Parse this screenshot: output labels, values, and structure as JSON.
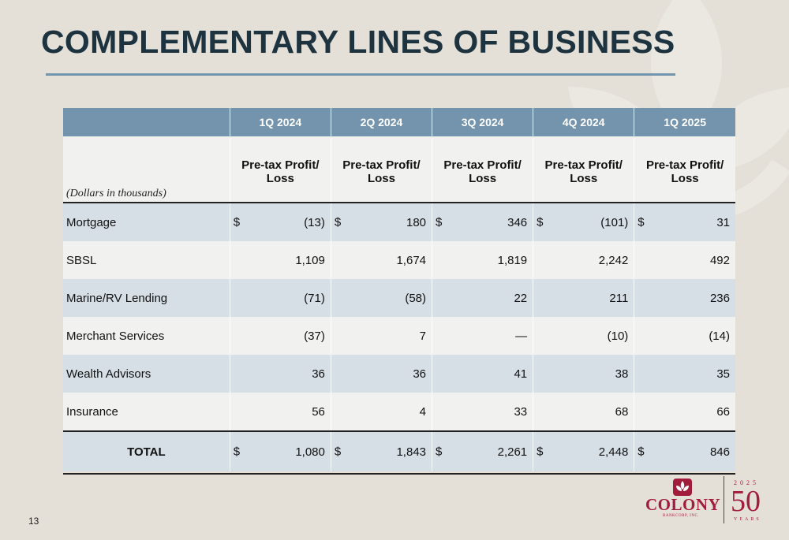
{
  "page": {
    "title": "COMPLEMENTARY LINES OF BUSINESS",
    "page_number": "13"
  },
  "table": {
    "periods": [
      "1Q 2024",
      "2Q 2024",
      "3Q 2024",
      "4Q 2024",
      "1Q 2025"
    ],
    "caption": "(Dollars in thousands)",
    "metric_line1": "Pre-tax Profit/",
    "metric_line2": "Loss",
    "rows": [
      {
        "label": "Mortgage",
        "dollar": "$",
        "values": [
          "(13)",
          "180",
          "346",
          "(101)",
          "31"
        ]
      },
      {
        "label": "SBSL",
        "values": [
          "1,109",
          "1,674",
          "1,819",
          "2,242",
          "492"
        ]
      },
      {
        "label": "Marine/RV Lending",
        "values": [
          "(71)",
          "(58)",
          "22",
          "211",
          "236"
        ]
      },
      {
        "label": "Merchant Services",
        "values": [
          "(37)",
          "7",
          "—",
          "(10)",
          "(14)"
        ]
      },
      {
        "label": "Wealth Advisors",
        "values": [
          "36",
          "36",
          "41",
          "38",
          "35"
        ]
      },
      {
        "label": "Insurance",
        "values": [
          "56",
          "4",
          "33",
          "68",
          "66"
        ]
      }
    ],
    "total": {
      "label": "TOTAL",
      "dollar": "$",
      "values": [
        "1,080",
        "1,843",
        "2,261",
        "2,448",
        "846"
      ]
    }
  },
  "logo": {
    "name": "COLONY",
    "subtitle": "BANKCORP, INC.",
    "year": "2025",
    "anniversary": "50",
    "years_label": "YEARS",
    "brand_color": "#a11d3b"
  },
  "colors": {
    "header": "#7494ad",
    "band": "#d7dfe6",
    "title": "#1e3340",
    "background": "#e4e0d8"
  }
}
